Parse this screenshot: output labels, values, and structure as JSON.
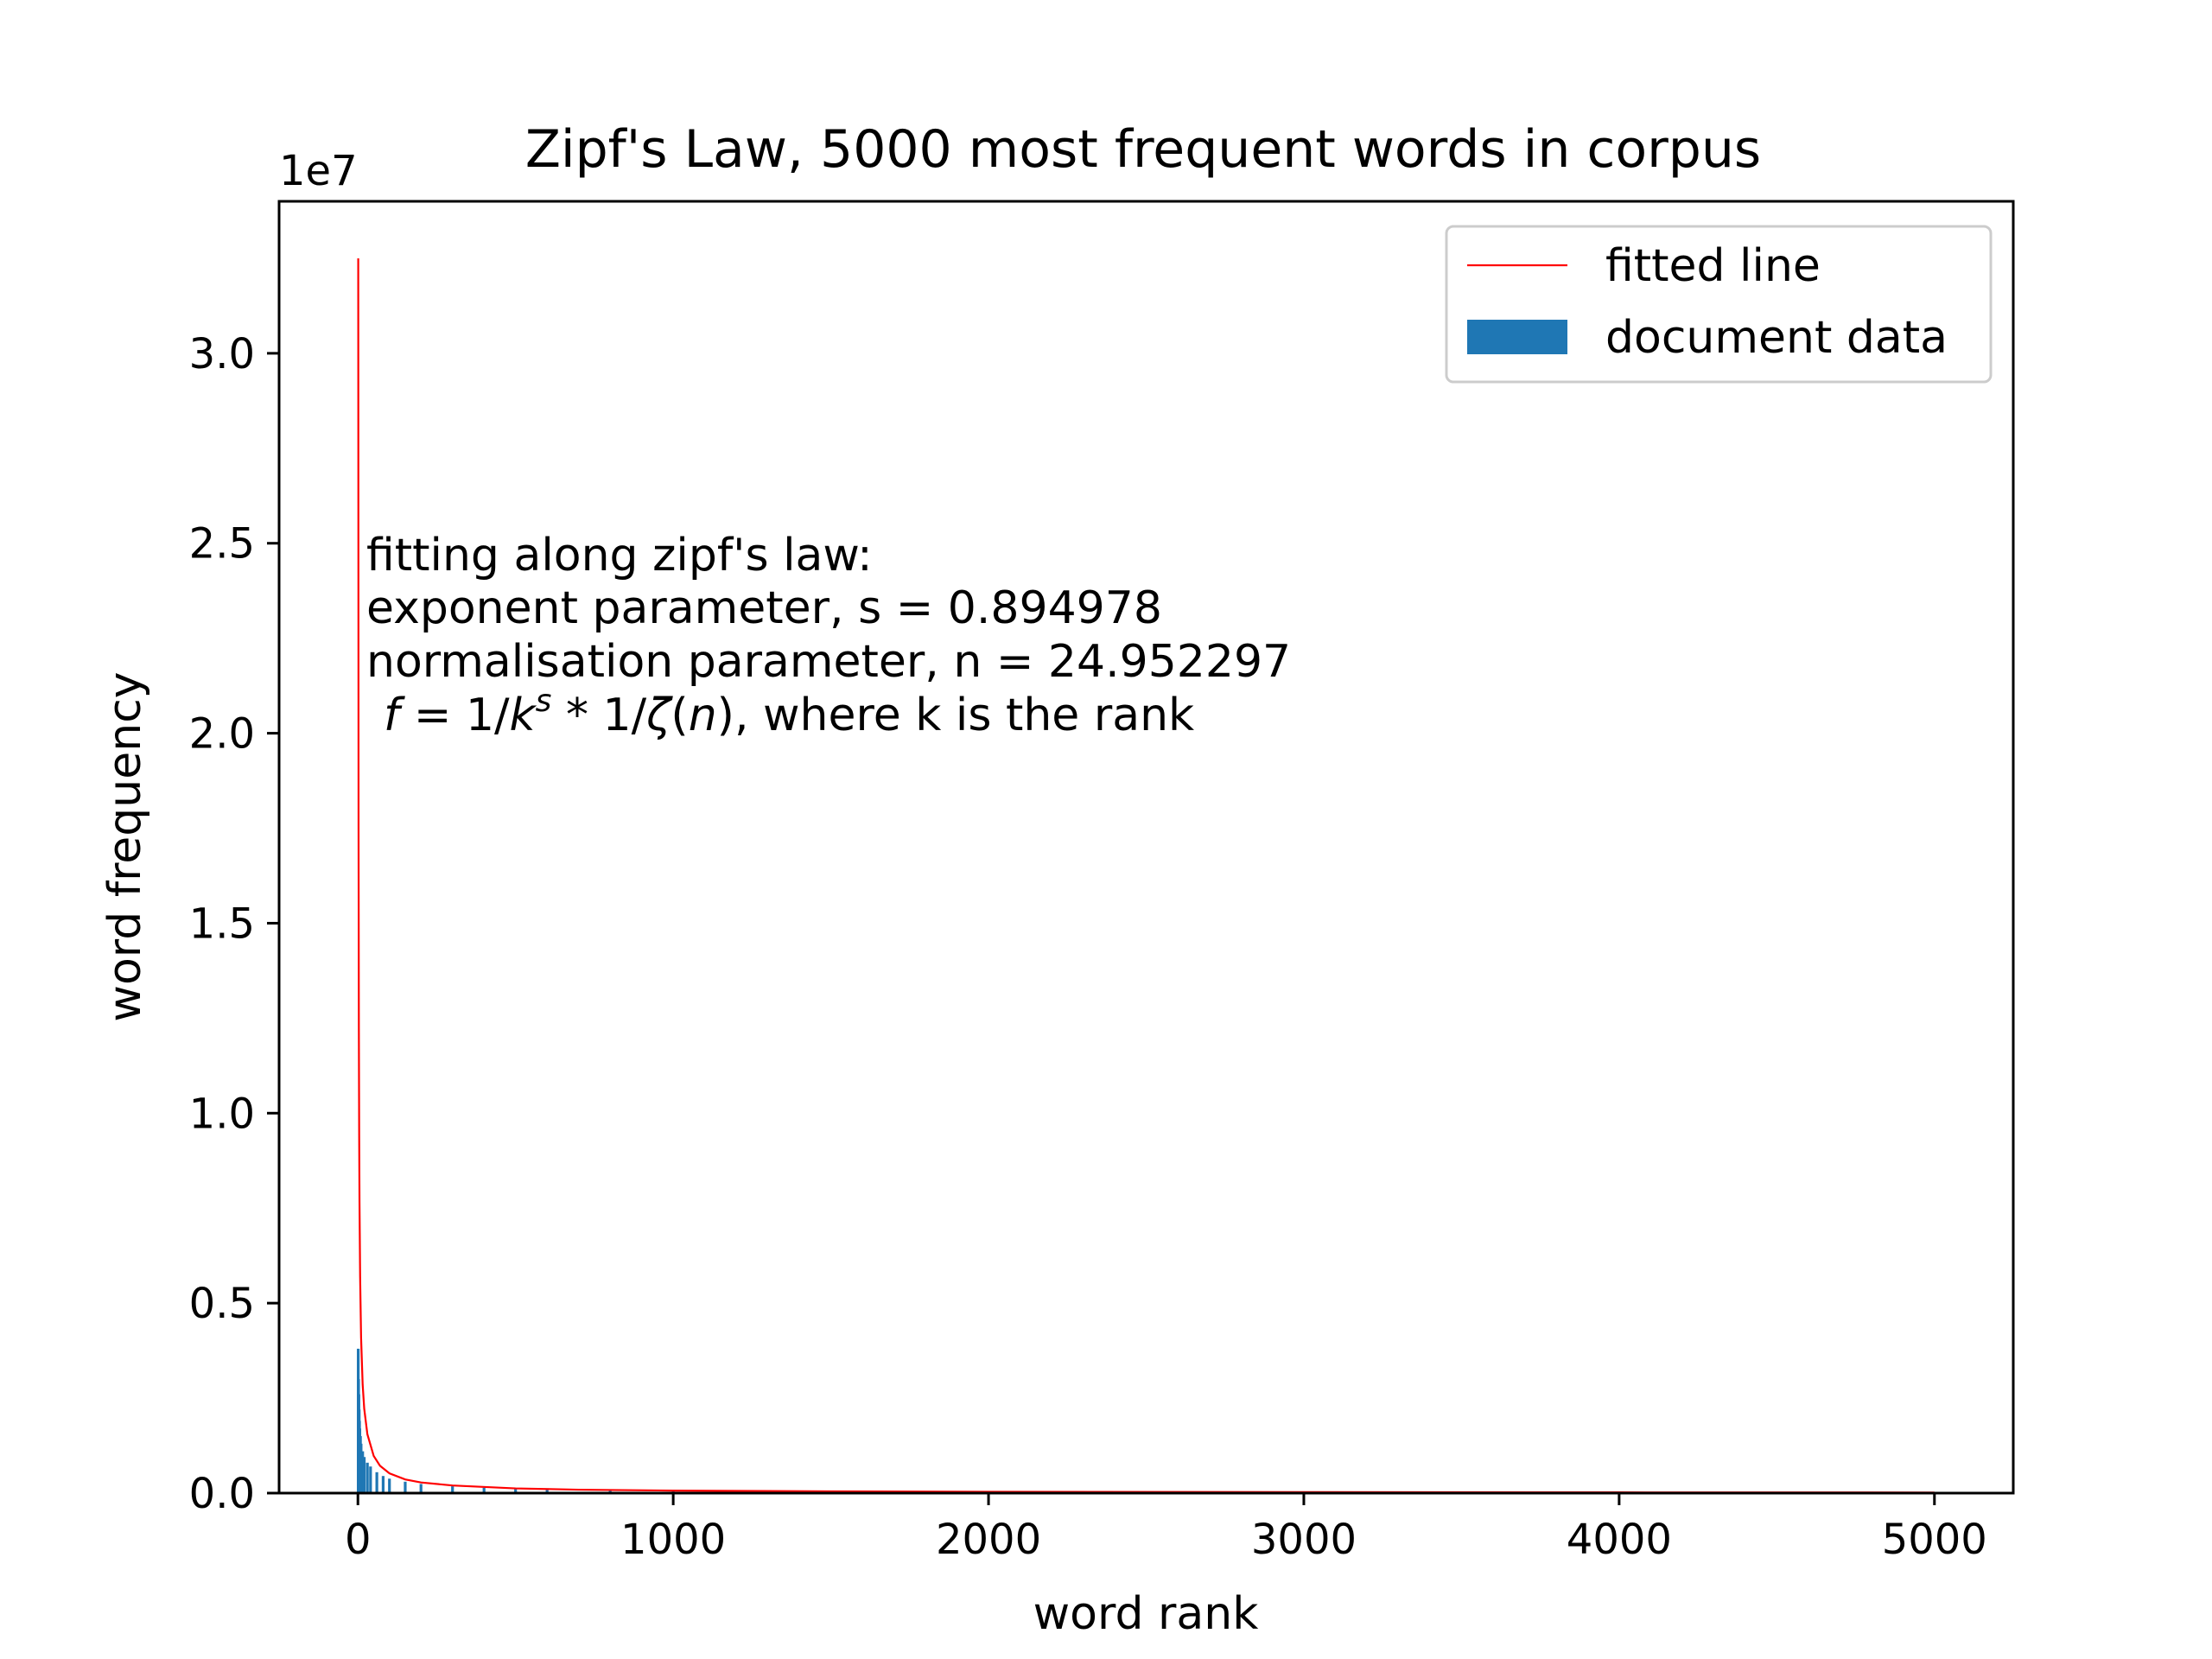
{
  "chart_data": {
    "type": "bar",
    "title": "Zipf's Law, 5000 most frequent words in corpus",
    "xlabel": "word rank",
    "ylabel": "word frequency",
    "y_offset_label": "1e7",
    "xlim": [
      -250,
      5250
    ],
    "ylim": [
      0,
      3.4
    ],
    "x_ticks": [
      0,
      1000,
      2000,
      3000,
      4000,
      5000
    ],
    "x_tick_labels": [
      "0",
      "1000",
      "2000",
      "3000",
      "4000",
      "5000"
    ],
    "y_ticks": [
      0,
      0.5,
      1.0,
      1.5,
      2.0,
      2.5,
      3.0
    ],
    "y_tick_labels": [
      "0.0",
      "0.5",
      "1.0",
      "1.5",
      "2.0",
      "2.5",
      "3.0"
    ],
    "grid": false,
    "legend_position": "top-right",
    "legend": [
      {
        "label": "fitted line",
        "kind": "line",
        "color": "#ff0000"
      },
      {
        "label": "document data",
        "kind": "patch",
        "color": "#1f77b4"
      }
    ],
    "series": [
      {
        "name": "document data",
        "type": "bar",
        "color": "#1f77b4",
        "x": [
          1,
          2,
          3,
          4,
          5,
          6,
          8,
          10,
          15,
          20,
          30,
          40,
          60,
          80,
          100,
          150,
          200,
          300,
          400,
          500,
          600,
          800,
          1000,
          1500,
          2000,
          3000,
          4000,
          5000
        ],
        "values": [
          0.38,
          0.3,
          0.26,
          0.22,
          0.19,
          0.17,
          0.15,
          0.13,
          0.11,
          0.095,
          0.08,
          0.07,
          0.055,
          0.045,
          0.038,
          0.03,
          0.024,
          0.018,
          0.014,
          0.011,
          0.009,
          0.007,
          0.006,
          0.004,
          0.003,
          0.002,
          0.0015,
          0.0012
        ]
      },
      {
        "name": "fitted line",
        "type": "line",
        "color": "#ff0000",
        "x": [
          1,
          2,
          3,
          4,
          5,
          7,
          10,
          15,
          20,
          30,
          50,
          70,
          100,
          150,
          200,
          300,
          500,
          700,
          1000,
          1500,
          2000,
          3000,
          4000,
          5000
        ],
        "values": [
          3.25,
          1.75,
          1.22,
          0.94,
          0.77,
          0.57,
          0.41,
          0.286,
          0.222,
          0.155,
          0.098,
          0.072,
          0.052,
          0.036,
          0.028,
          0.02,
          0.0124,
          0.009,
          0.0066,
          0.0046,
          0.0035,
          0.0025,
          0.0019,
          0.0016
        ]
      }
    ],
    "annotation": {
      "lines": [
        "fitting along zipf's law:",
        "exponent parameter, s = 0.894978",
        "normalisation parameter, n = 24.952297"
      ],
      "formula": {
        "f": "f",
        "eq_one": " = 1/",
        "k": "k",
        "s": "s",
        "mid": " * 1/",
        "zeta": "ζ",
        "paren_open": "(",
        "n": "n",
        "tail": "), where k is the rank"
      }
    }
  }
}
